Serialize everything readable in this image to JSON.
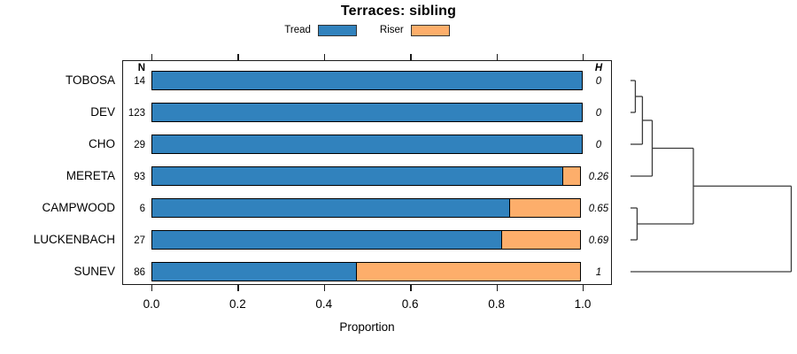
{
  "title": "Terraces: sibling",
  "legend": {
    "items": [
      {
        "label": "Tread",
        "color": "#3182BD"
      },
      {
        "label": "Riser",
        "color": "#FDAE6B"
      }
    ]
  },
  "columns": {
    "n_header": "N",
    "h_header": "H"
  },
  "axis": {
    "xlabel": "Proportion",
    "ticks": [
      "0.0",
      "0.2",
      "0.4",
      "0.6",
      "0.8",
      "1.0"
    ]
  },
  "chart_data": {
    "type": "bar",
    "stacked": true,
    "orientation": "horizontal",
    "title": "Terraces: sibling",
    "xlabel": "Proportion",
    "xlim": [
      0,
      1
    ],
    "xticks": [
      0,
      0.2,
      0.4,
      0.6,
      0.8,
      1.0
    ],
    "categories": [
      "TOBOSA",
      "DEV",
      "CHO",
      "MERETA",
      "CAMPWOOD",
      "LUCKENBACH",
      "SUNEV"
    ],
    "series": [
      {
        "name": "Tread",
        "color": "#3182BD",
        "values": [
          1,
          1,
          1,
          0.957,
          0.833,
          0.815,
          0.477
        ]
      },
      {
        "name": "Riser",
        "color": "#FDAE6B",
        "values": [
          0,
          0,
          0,
          0.043,
          0.167,
          0.185,
          0.523
        ]
      }
    ],
    "n_values": [
      "14",
      "123",
      "29",
      "93",
      "6",
      "27",
      "86"
    ],
    "h_values": [
      "0",
      "0",
      "0",
      "0.26",
      "0.65",
      "0.69",
      "1"
    ],
    "legend_position": "top",
    "grid": false,
    "dendrogram": {
      "leaf_order": [
        "TOBOSA",
        "DEV",
        "CHO",
        "MERETA",
        "CAMPWOOD",
        "LUCKENBACH",
        "SUNEV"
      ],
      "merges": [
        {
          "left": "TOBOSA",
          "right": "DEV",
          "height": 0.03
        },
        {
          "left": "@0",
          "right": "CHO",
          "height": 0.074
        },
        {
          "left": "@1",
          "right": "MERETA",
          "height": 0.135
        },
        {
          "left": "CAMPWOOD",
          "right": "LUCKENBACH",
          "height": 0.041
        },
        {
          "left": "@2",
          "right": "@3",
          "height": 0.391
        },
        {
          "left": "@4",
          "right": "SUNEV",
          "height": 1.0
        }
      ]
    }
  }
}
